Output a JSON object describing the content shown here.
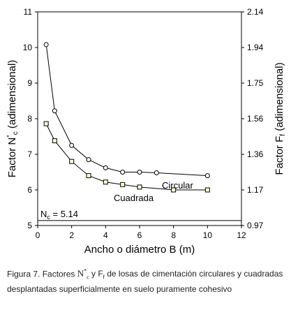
{
  "chart_data": {
    "type": "line",
    "xlabel": "Ancho o diámetro B (m)",
    "ylabel_left": "Factor N*c (adimensional)",
    "ylabel_right": "Factor Ff (adimensional)",
    "xlim": [
      0,
      12
    ],
    "ylim_left": [
      5,
      11
    ],
    "ylim_right": [
      0.97,
      2.14
    ],
    "x_ticks": [
      "0",
      "2",
      "4",
      "6",
      "8",
      "10",
      "12"
    ],
    "y_ticks_left": [
      "5",
      "6",
      "7",
      "8",
      "9",
      "10",
      "11"
    ],
    "y_ticks_right": [
      "0.97",
      "1.17",
      "1.36",
      "1.56",
      "1.75",
      "1.94",
      "2.14"
    ],
    "grid": false,
    "reference_line": {
      "y": 5.14,
      "label": "Nc = 5.14"
    },
    "series": [
      {
        "name": "Circular",
        "marker": "circle",
        "x": [
          0.5,
          1,
          2,
          3,
          4,
          5,
          6,
          7,
          10
        ],
        "y": [
          10.08,
          8.22,
          7.25,
          6.85,
          6.62,
          6.5,
          6.5,
          6.48,
          6.4
        ]
      },
      {
        "name": "Cuadrada",
        "marker": "square",
        "x": [
          0.5,
          1,
          2,
          3,
          4,
          5,
          6,
          8,
          10
        ],
        "y": [
          7.86,
          7.38,
          6.8,
          6.4,
          6.22,
          6.15,
          6.08,
          6.0,
          6.0
        ]
      }
    ]
  },
  "caption": {
    "lead": "Figura 7. Factores ",
    "sym1": "N*c",
    "mid": " y Ff de losas de cimentación circulares y cuadradas desplantadas superficialmente en suelo puramente cohesivo"
  }
}
